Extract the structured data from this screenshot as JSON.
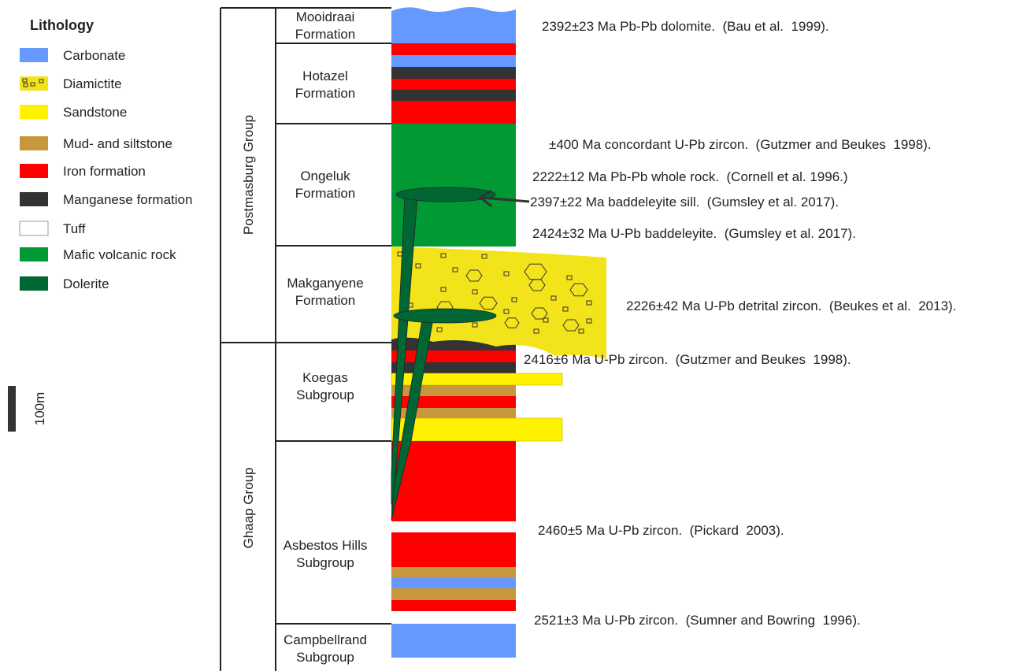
{
  "legend": {
    "title": "Lithology",
    "items": [
      {
        "label": "Carbonate",
        "color": "#6699ff"
      },
      {
        "label": "Diamictite",
        "color": "#f2e31b"
      },
      {
        "label": "Sandstone",
        "color": "#fff200"
      },
      {
        "label": "Mud- and siltstone",
        "color": "#c8963c"
      },
      {
        "label": "Iron formation",
        "color": "#ff0000"
      },
      {
        "label": "Manganese formation",
        "color": "#333333"
      },
      {
        "label": "Tuff",
        "color": "#ffffff"
      },
      {
        "label": "Mafic volcanic rock",
        "color": "#009933"
      },
      {
        "label": "Dolerite",
        "color": "#006633"
      }
    ]
  },
  "scale": "100m",
  "groups": [
    "Postmasburg Group",
    "Ghaap Group"
  ],
  "units": [
    [
      "Mooidraai",
      "Formation"
    ],
    [
      "Hotazel",
      "Formation"
    ],
    [
      "Ongeluk",
      "Formation"
    ],
    [
      "Makganyene",
      "Formation"
    ],
    [
      "Koegas",
      "Subgroup"
    ],
    [
      "Asbestos Hills",
      "Subgroup"
    ],
    [
      "Campbellrand",
      "Subgroup"
    ]
  ],
  "annotations": [
    "2392±23 Ma Pb-Pb dolomite.  (Bau et al.  1999).",
    "±400 Ma concordant U-Pb zircon.  (Gutzmer and Beukes  1998).",
    "2222±12 Ma Pb-Pb whole rock.  (Cornell et al. 1996.)",
    "2397±22 Ma baddeleyite sill.  (Gumsley et al. 2017).",
    "2424±32 Ma U-Pb baddeleyite.  (Gumsley et al. 2017).",
    "2226±42 Ma U-Pb detrital zircon.  (Beukes et al.  2013).",
    "2416±6 Ma U-Pb zircon.  (Gutzmer and Beukes  1998).",
    "2460±5 Ma U-Pb zircon.  (Pickard  2003).",
    "2521±3 Ma U-Pb zircon.  (Sumner and Bowring  1996)."
  ]
}
